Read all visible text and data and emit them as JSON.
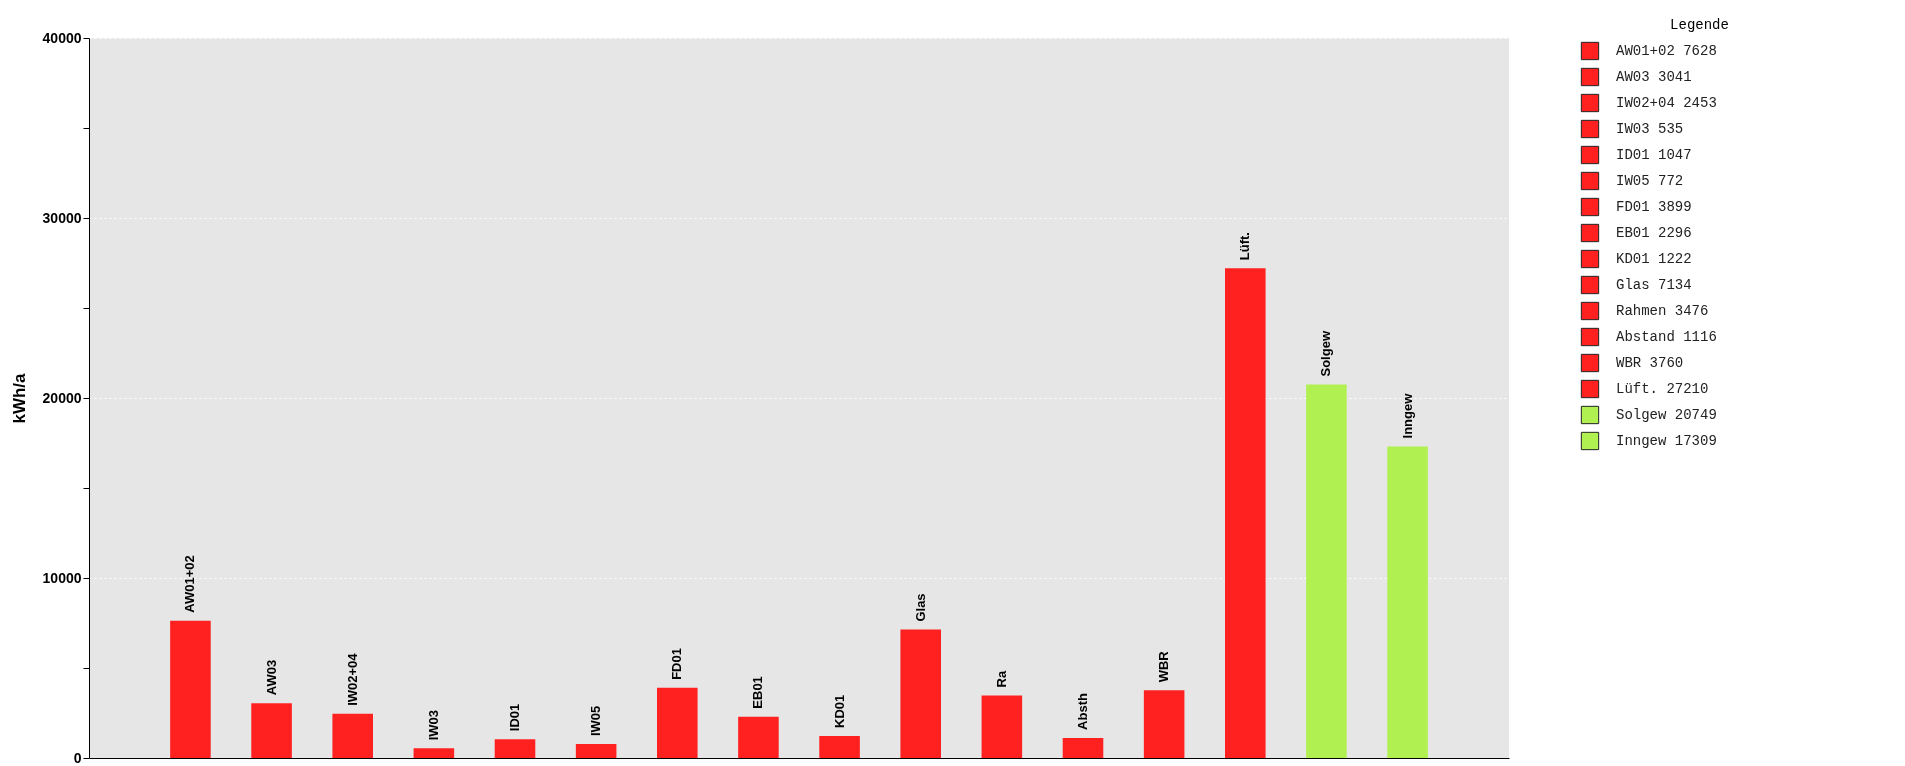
{
  "chart_data": {
    "type": "bar",
    "ylabel": "kWh/a",
    "legend_title": "Legende",
    "stacked": true,
    "legend": "right",
    "grid": "y",
    "categories": [
      "AW01+02",
      "AW03",
      "IW02+04",
      "IW03",
      "ID01",
      "IW05",
      "FD01",
      "EB01",
      "KD01",
      "Glas",
      "Ra",
      "Absth",
      "WBR",
      "Lüft.",
      "Solgew",
      "Inngew"
    ],
    "ylim": [
      0,
      40000
    ],
    "yticks": [
      0,
      {
        "value": 5000,
        "label": null
      },
      10000,
      {
        "value": 15000,
        "label": null
      },
      20000,
      {
        "value": 25000,
        "label": null
      },
      30000,
      {
        "value": 35000,
        "label": null
      },
      40000
    ],
    "series": [
      {
        "name": "AW01+02 7628",
        "color": "#ff2020",
        "values": [
          7628,
          null,
          null,
          null,
          null,
          null,
          null,
          null,
          null,
          null,
          null,
          null,
          null,
          null,
          null,
          null
        ]
      },
      {
        "name": "AW03 3041",
        "color": "#ff2020",
        "values": [
          null,
          3041,
          null,
          null,
          null,
          null,
          null,
          null,
          null,
          null,
          null,
          null,
          null,
          null,
          null,
          null
        ]
      },
      {
        "name": "IW02+04 2453",
        "color": "#ff2020",
        "values": [
          null,
          null,
          2453,
          null,
          null,
          null,
          null,
          null,
          null,
          null,
          null,
          null,
          null,
          null,
          null,
          null
        ]
      },
      {
        "name": "IW03 535",
        "color": "#ff2020",
        "values": [
          null,
          null,
          null,
          535,
          null,
          null,
          null,
          null,
          null,
          null,
          null,
          null,
          null,
          null,
          null,
          null
        ]
      },
      {
        "name": "ID01 1047",
        "color": "#ff2020",
        "values": [
          null,
          null,
          null,
          null,
          1047,
          null,
          null,
          null,
          null,
          null,
          null,
          null,
          null,
          null,
          null,
          null
        ]
      },
      {
        "name": "IW05 772",
        "color": "#ff2020",
        "values": [
          null,
          null,
          null,
          null,
          null,
          772,
          null,
          null,
          null,
          null,
          null,
          null,
          null,
          null,
          null,
          null
        ]
      },
      {
        "name": "FD01 3899",
        "color": "#ff2020",
        "values": [
          null,
          null,
          null,
          null,
          null,
          null,
          3899,
          null,
          null,
          null,
          null,
          null,
          null,
          null,
          null,
          null
        ]
      },
      {
        "name": "EB01 2296",
        "color": "#ff2020",
        "values": [
          null,
          null,
          null,
          null,
          null,
          null,
          null,
          2296,
          null,
          null,
          null,
          null,
          null,
          null,
          null,
          null
        ]
      },
      {
        "name": "KD01 1222",
        "color": "#ff2020",
        "values": [
          null,
          null,
          null,
          null,
          null,
          null,
          null,
          null,
          1222,
          null,
          null,
          null,
          null,
          null,
          null,
          null
        ]
      },
      {
        "name": "Glas 7134",
        "color": "#ff2020",
        "values": [
          null,
          null,
          null,
          null,
          null,
          null,
          null,
          null,
          null,
          7134,
          null,
          null,
          null,
          null,
          null,
          null
        ]
      },
      {
        "name": "Rahmen 3476",
        "color": "#ff2020",
        "values": [
          null,
          null,
          null,
          null,
          null,
          null,
          null,
          null,
          null,
          null,
          3476,
          null,
          null,
          null,
          null,
          null
        ]
      },
      {
        "name": "Abstand 1116",
        "color": "#ff2020",
        "values": [
          null,
          null,
          null,
          null,
          null,
          null,
          null,
          null,
          null,
          null,
          null,
          1116,
          null,
          null,
          null,
          null
        ]
      },
      {
        "name": "WBR 3760",
        "color": "#ff2020",
        "values": [
          null,
          null,
          null,
          null,
          null,
          null,
          null,
          null,
          null,
          null,
          null,
          null,
          3760,
          null,
          null,
          null
        ]
      },
      {
        "name": "Lüft. 27210",
        "color": "#ff2020",
        "values": [
          null,
          null,
          null,
          null,
          null,
          null,
          null,
          null,
          null,
          null,
          null,
          null,
          null,
          27210,
          null,
          null
        ]
      },
      {
        "name": "Solgew 20749",
        "color": "#b0f050",
        "values": [
          null,
          null,
          null,
          null,
          null,
          null,
          null,
          null,
          null,
          null,
          null,
          null,
          null,
          null,
          20749,
          null
        ]
      },
      {
        "name": "Inngew 17309",
        "color": "#b0f050",
        "values": [
          null,
          null,
          null,
          null,
          null,
          null,
          null,
          null,
          null,
          null,
          null,
          null,
          null,
          null,
          null,
          17309
        ]
      }
    ]
  }
}
